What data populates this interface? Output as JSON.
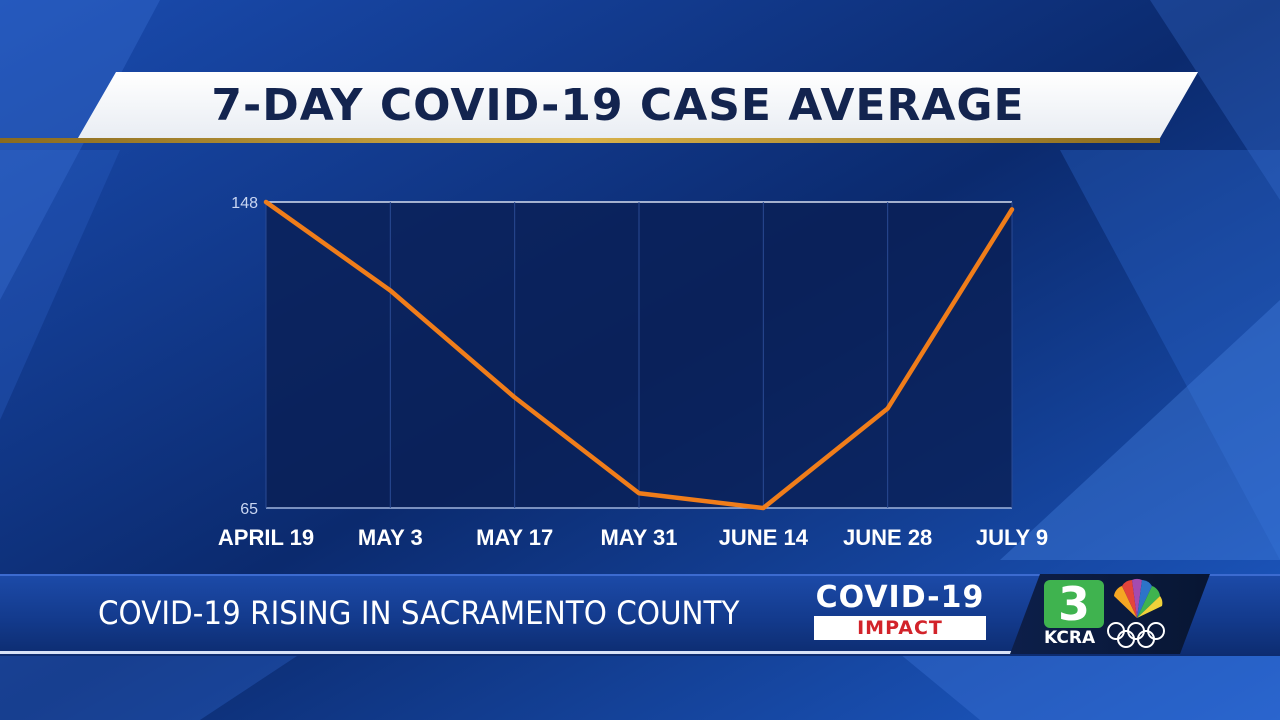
{
  "header": {
    "title": "7-DAY COVID-19 CASE AVERAGE"
  },
  "chart_data": {
    "type": "line",
    "title": "7-DAY COVID-19 CASE AVERAGE",
    "xlabel": "",
    "ylabel": "",
    "categories": [
      "APRIL 19",
      "MAY 3",
      "MAY 17",
      "MAY 31",
      "JUNE 14",
      "JUNE 28",
      "JULY 9"
    ],
    "y_tick_labels": [
      "148",
      "65"
    ],
    "ylim": [
      65,
      148
    ],
    "grid": true,
    "legend": "none",
    "series": [
      {
        "values": [
          148,
          124,
          95,
          69,
          65,
          92,
          146
        ],
        "color": "#f07d1a"
      }
    ]
  },
  "lower_third": {
    "headline": "COVID-19 RISING IN SACRAMENTO COUNTY",
    "badge_title": "COVID-19",
    "badge_subtitle": "IMPACT"
  },
  "station": {
    "channel": "3",
    "call_sign": "KCRA"
  },
  "colors": {
    "accent": "#d9b24a",
    "line": "#f07d1a",
    "background": "#0b2a6e",
    "logo_green": "#3fb34f"
  }
}
